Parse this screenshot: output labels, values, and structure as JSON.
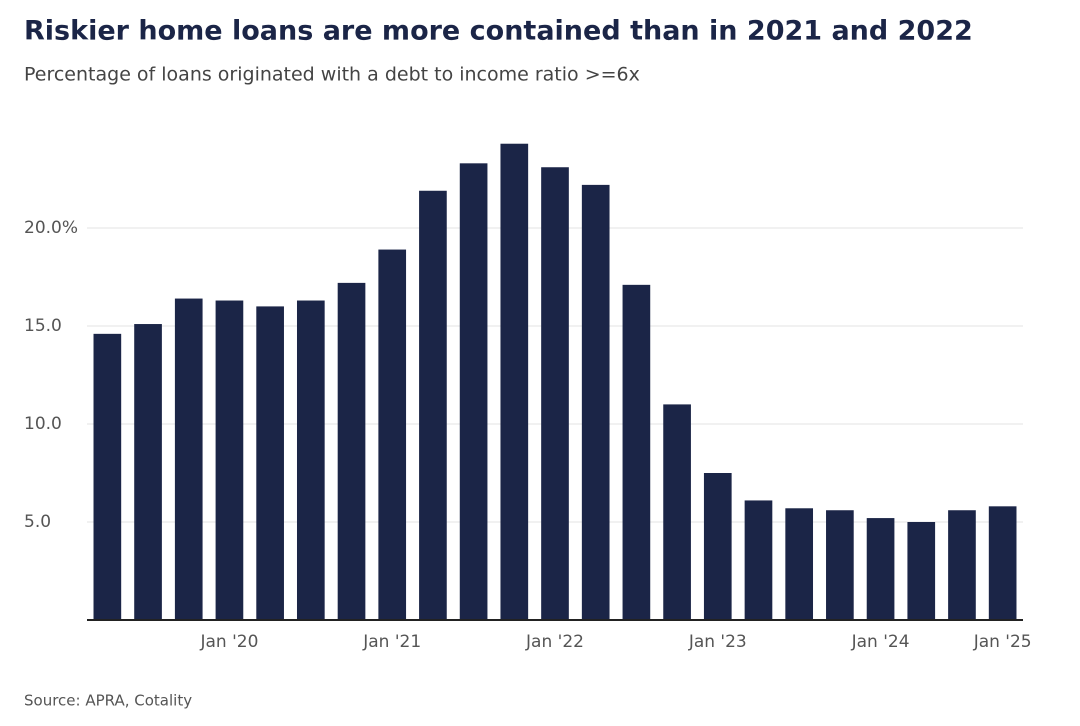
{
  "chart_data": {
    "type": "bar",
    "title": "Riskier home loans are more contained than in 2021 and 2022",
    "subtitle": "Percentage of loans originated with a debt to income ratio >=6x",
    "source": "Source: APRA, Cotality",
    "categories": [
      null,
      null,
      null,
      "Jan '20",
      null,
      null,
      null,
      "Jan '21",
      null,
      null,
      null,
      "Jan '22",
      null,
      null,
      null,
      "Jan '23",
      null,
      null,
      null,
      "Jan '24",
      null,
      null,
      "Jan '25"
    ],
    "values": [
      14.6,
      15.1,
      16.4,
      16.3,
      16.0,
      16.3,
      17.2,
      18.9,
      21.9,
      23.3,
      24.3,
      23.1,
      22.2,
      17.1,
      11.0,
      7.5,
      6.1,
      5.7,
      5.6,
      5.2,
      5.0,
      5.6,
      5.8
    ],
    "color": "#1b2547",
    "ylim": [
      0,
      25
    ],
    "yticks": [
      {
        "value": 5,
        "label": "5.0"
      },
      {
        "value": 10,
        "label": "10.0"
      },
      {
        "value": 15,
        "label": "15.0"
      },
      {
        "value": 20,
        "label": "20.0%"
      }
    ],
    "grid": true
  }
}
